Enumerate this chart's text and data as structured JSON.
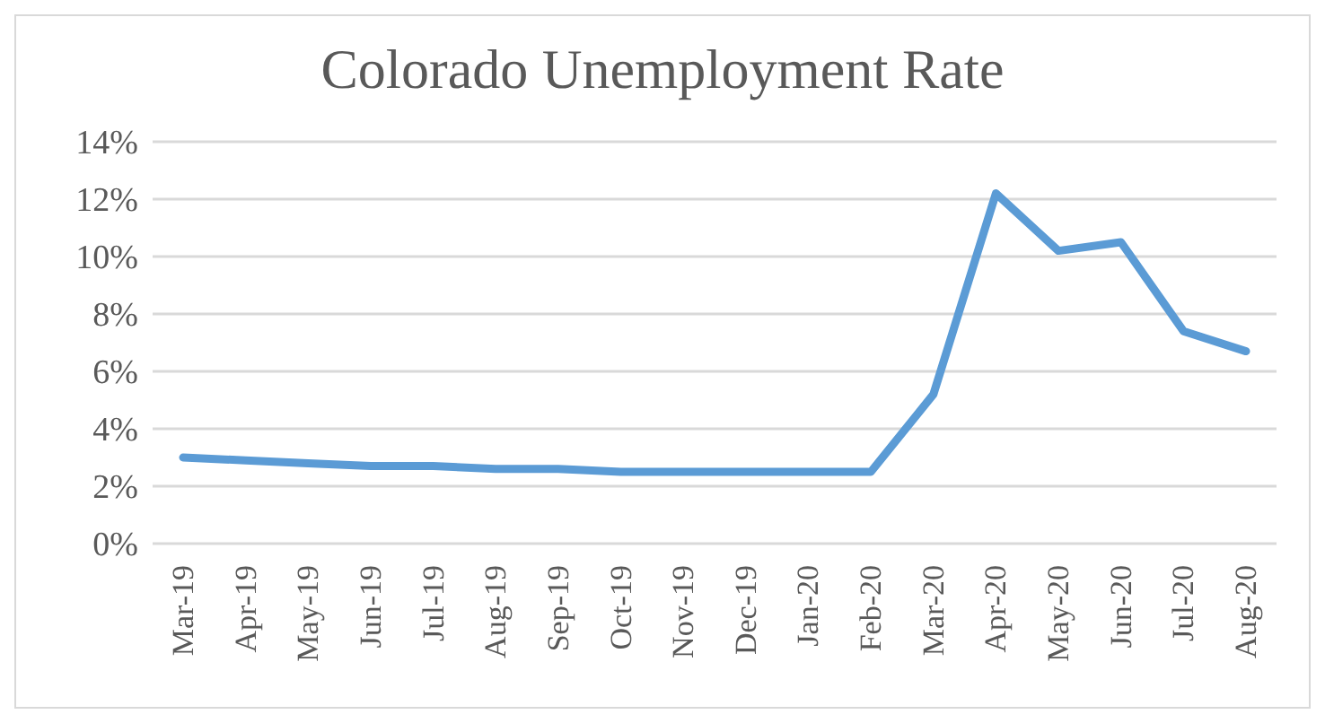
{
  "chart_data": {
    "type": "line",
    "title": "Colorado Unemployment Rate",
    "categories": [
      "Mar-19",
      "Apr-19",
      "May-19",
      "Jun-19",
      "Jul-19",
      "Aug-19",
      "Sep-19",
      "Oct-19",
      "Nov-19",
      "Dec-19",
      "Jan-20",
      "Feb-20",
      "Mar-20",
      "Apr-20",
      "May-20",
      "Jun-20",
      "Jul-20",
      "Aug-20"
    ],
    "series": [
      {
        "color": "#5b9bd5",
        "values": [
          3.0,
          2.9,
          2.8,
          2.7,
          2.7,
          2.6,
          2.6,
          2.5,
          2.5,
          2.5,
          2.5,
          2.5,
          5.2,
          12.2,
          10.2,
          10.5,
          7.4,
          6.7
        ]
      }
    ],
    "ylim": [
      0,
      14
    ],
    "yticks": [
      {
        "value": 0,
        "label": "0%"
      },
      {
        "value": 2,
        "label": "2%"
      },
      {
        "value": 4,
        "label": "4%"
      },
      {
        "value": 6,
        "label": "6%"
      },
      {
        "value": 8,
        "label": "8%"
      },
      {
        "value": 10,
        "label": "10%"
      },
      {
        "value": 12,
        "label": "12%"
      },
      {
        "value": 14,
        "label": "14%"
      }
    ],
    "grid": "y",
    "legend": false,
    "marker": "none",
    "line_style": "solid"
  }
}
